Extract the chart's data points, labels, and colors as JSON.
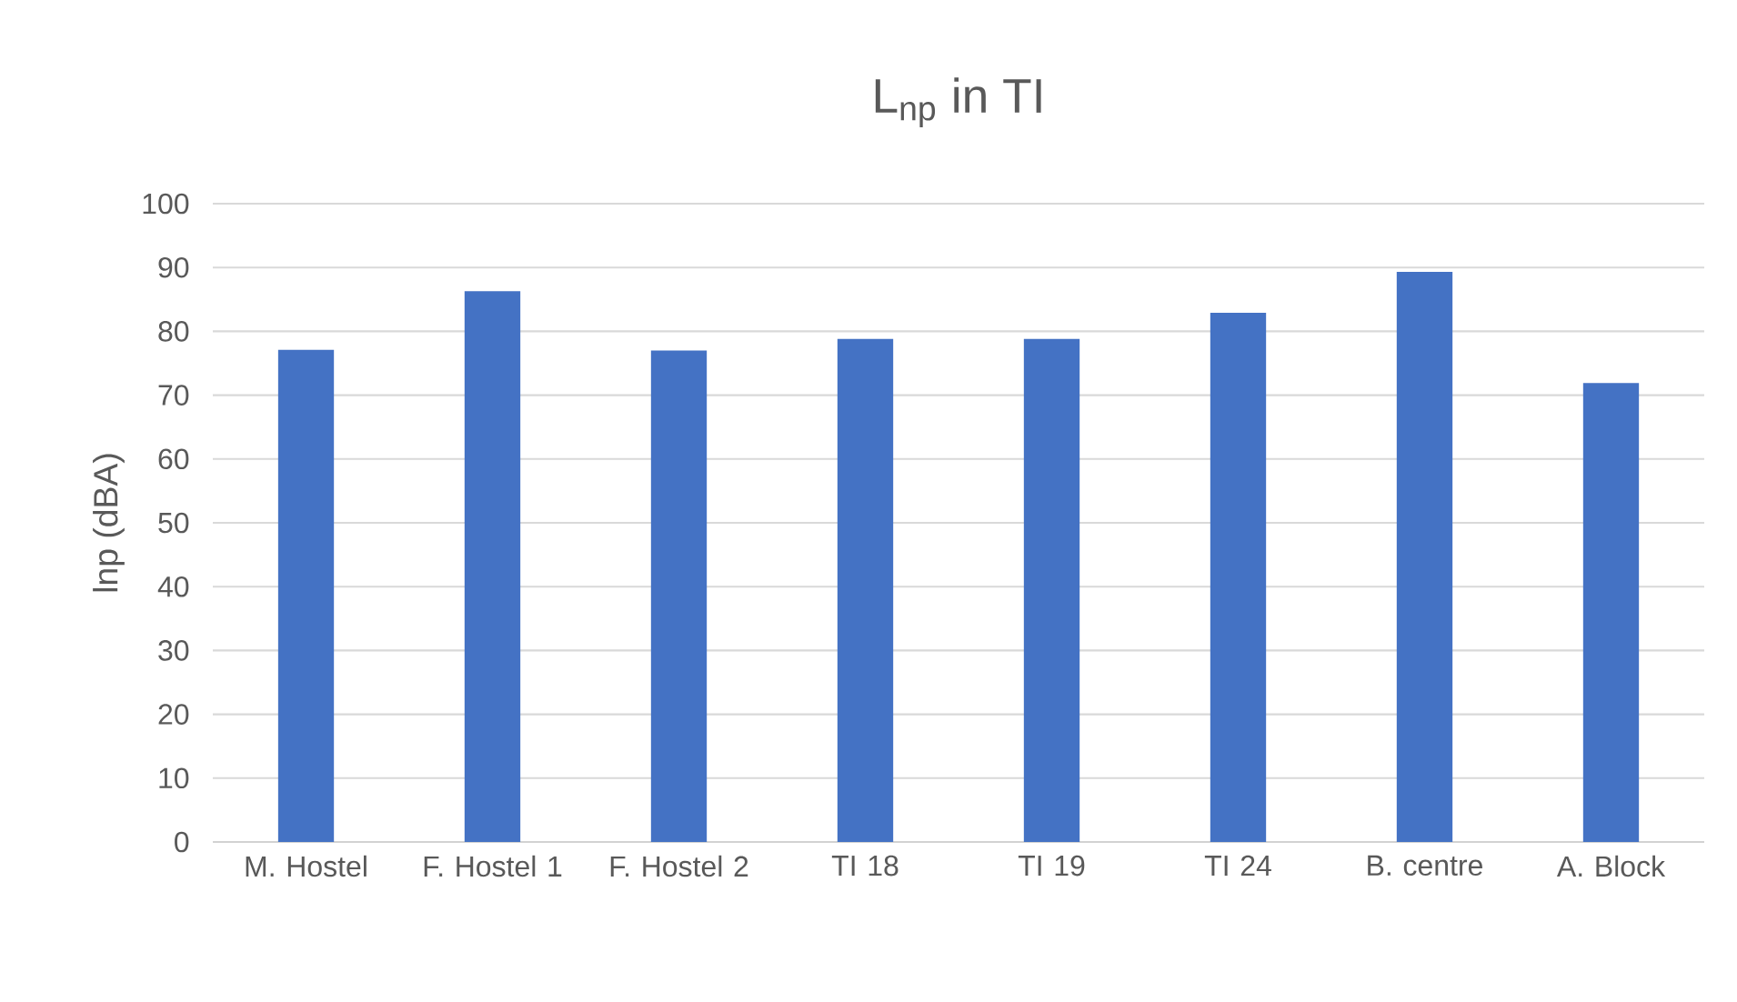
{
  "chart_data": {
    "type": "bar",
    "title": "L$_{np}$ in TI",
    "ylabel": "lnp (dBA)",
    "categories": [
      "M. Hostel",
      "F. Hostel 1",
      "F. Hostel 2",
      "TI 18",
      "TI 19",
      "TI 24",
      "B. centre",
      "A. Block"
    ],
    "values": [
      77.1,
      86.3,
      77.0,
      78.8,
      78.8,
      82.9,
      89.3,
      71.9
    ],
    "color": "#4472c4",
    "ylim": [
      0,
      100
    ],
    "yticks": [
      0,
      10,
      20,
      30,
      40,
      50,
      60,
      70,
      80,
      90,
      100
    ],
    "grid": "y"
  }
}
